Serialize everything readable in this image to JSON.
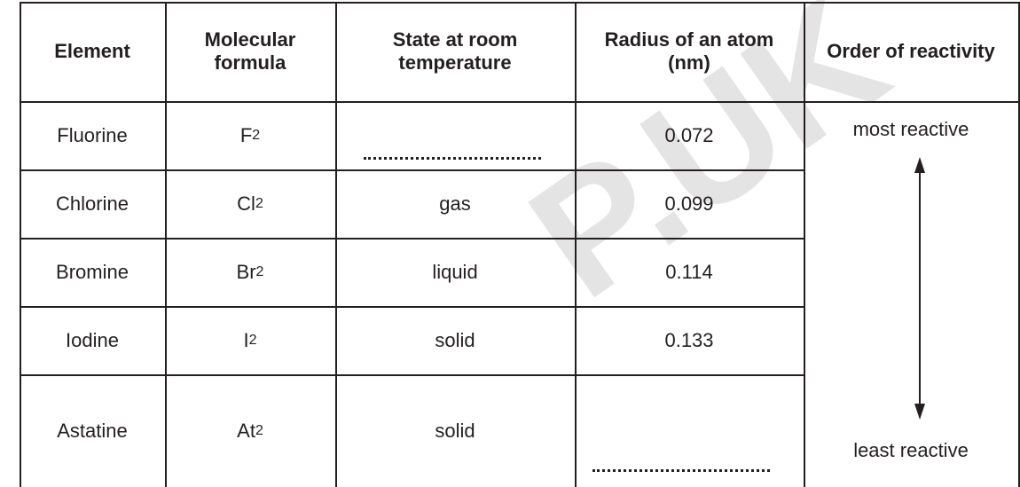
{
  "table": {
    "headers": [
      "Element",
      "Molecular formula",
      "State at room temperature",
      "Radius of an atom (nm)",
      "Order of reactivity"
    ],
    "rows": [
      {
        "element": "Fluorine",
        "formula": {
          "symbol": "F",
          "subscript": "2"
        },
        "radius": "0.072"
      },
      {
        "element": "Chlorine",
        "formula": {
          "symbol": "Cl",
          "subscript": "2"
        },
        "state": "gas",
        "radius": "0.099"
      },
      {
        "element": "Bromine",
        "formula": {
          "symbol": "Br",
          "subscript": "2"
        },
        "state": "liquid",
        "radius": "0.114"
      },
      {
        "element": "Iodine",
        "formula": {
          "symbol": "I",
          "subscript": "2"
        },
        "state": "solid",
        "radius": "0.133"
      },
      {
        "element": "Astatine",
        "formula": {
          "symbol": "At",
          "subscript": "2"
        },
        "state": "solid"
      }
    ],
    "order": {
      "top": "most reactive",
      "bottom": "least reactive"
    }
  },
  "watermark": "P.UK"
}
